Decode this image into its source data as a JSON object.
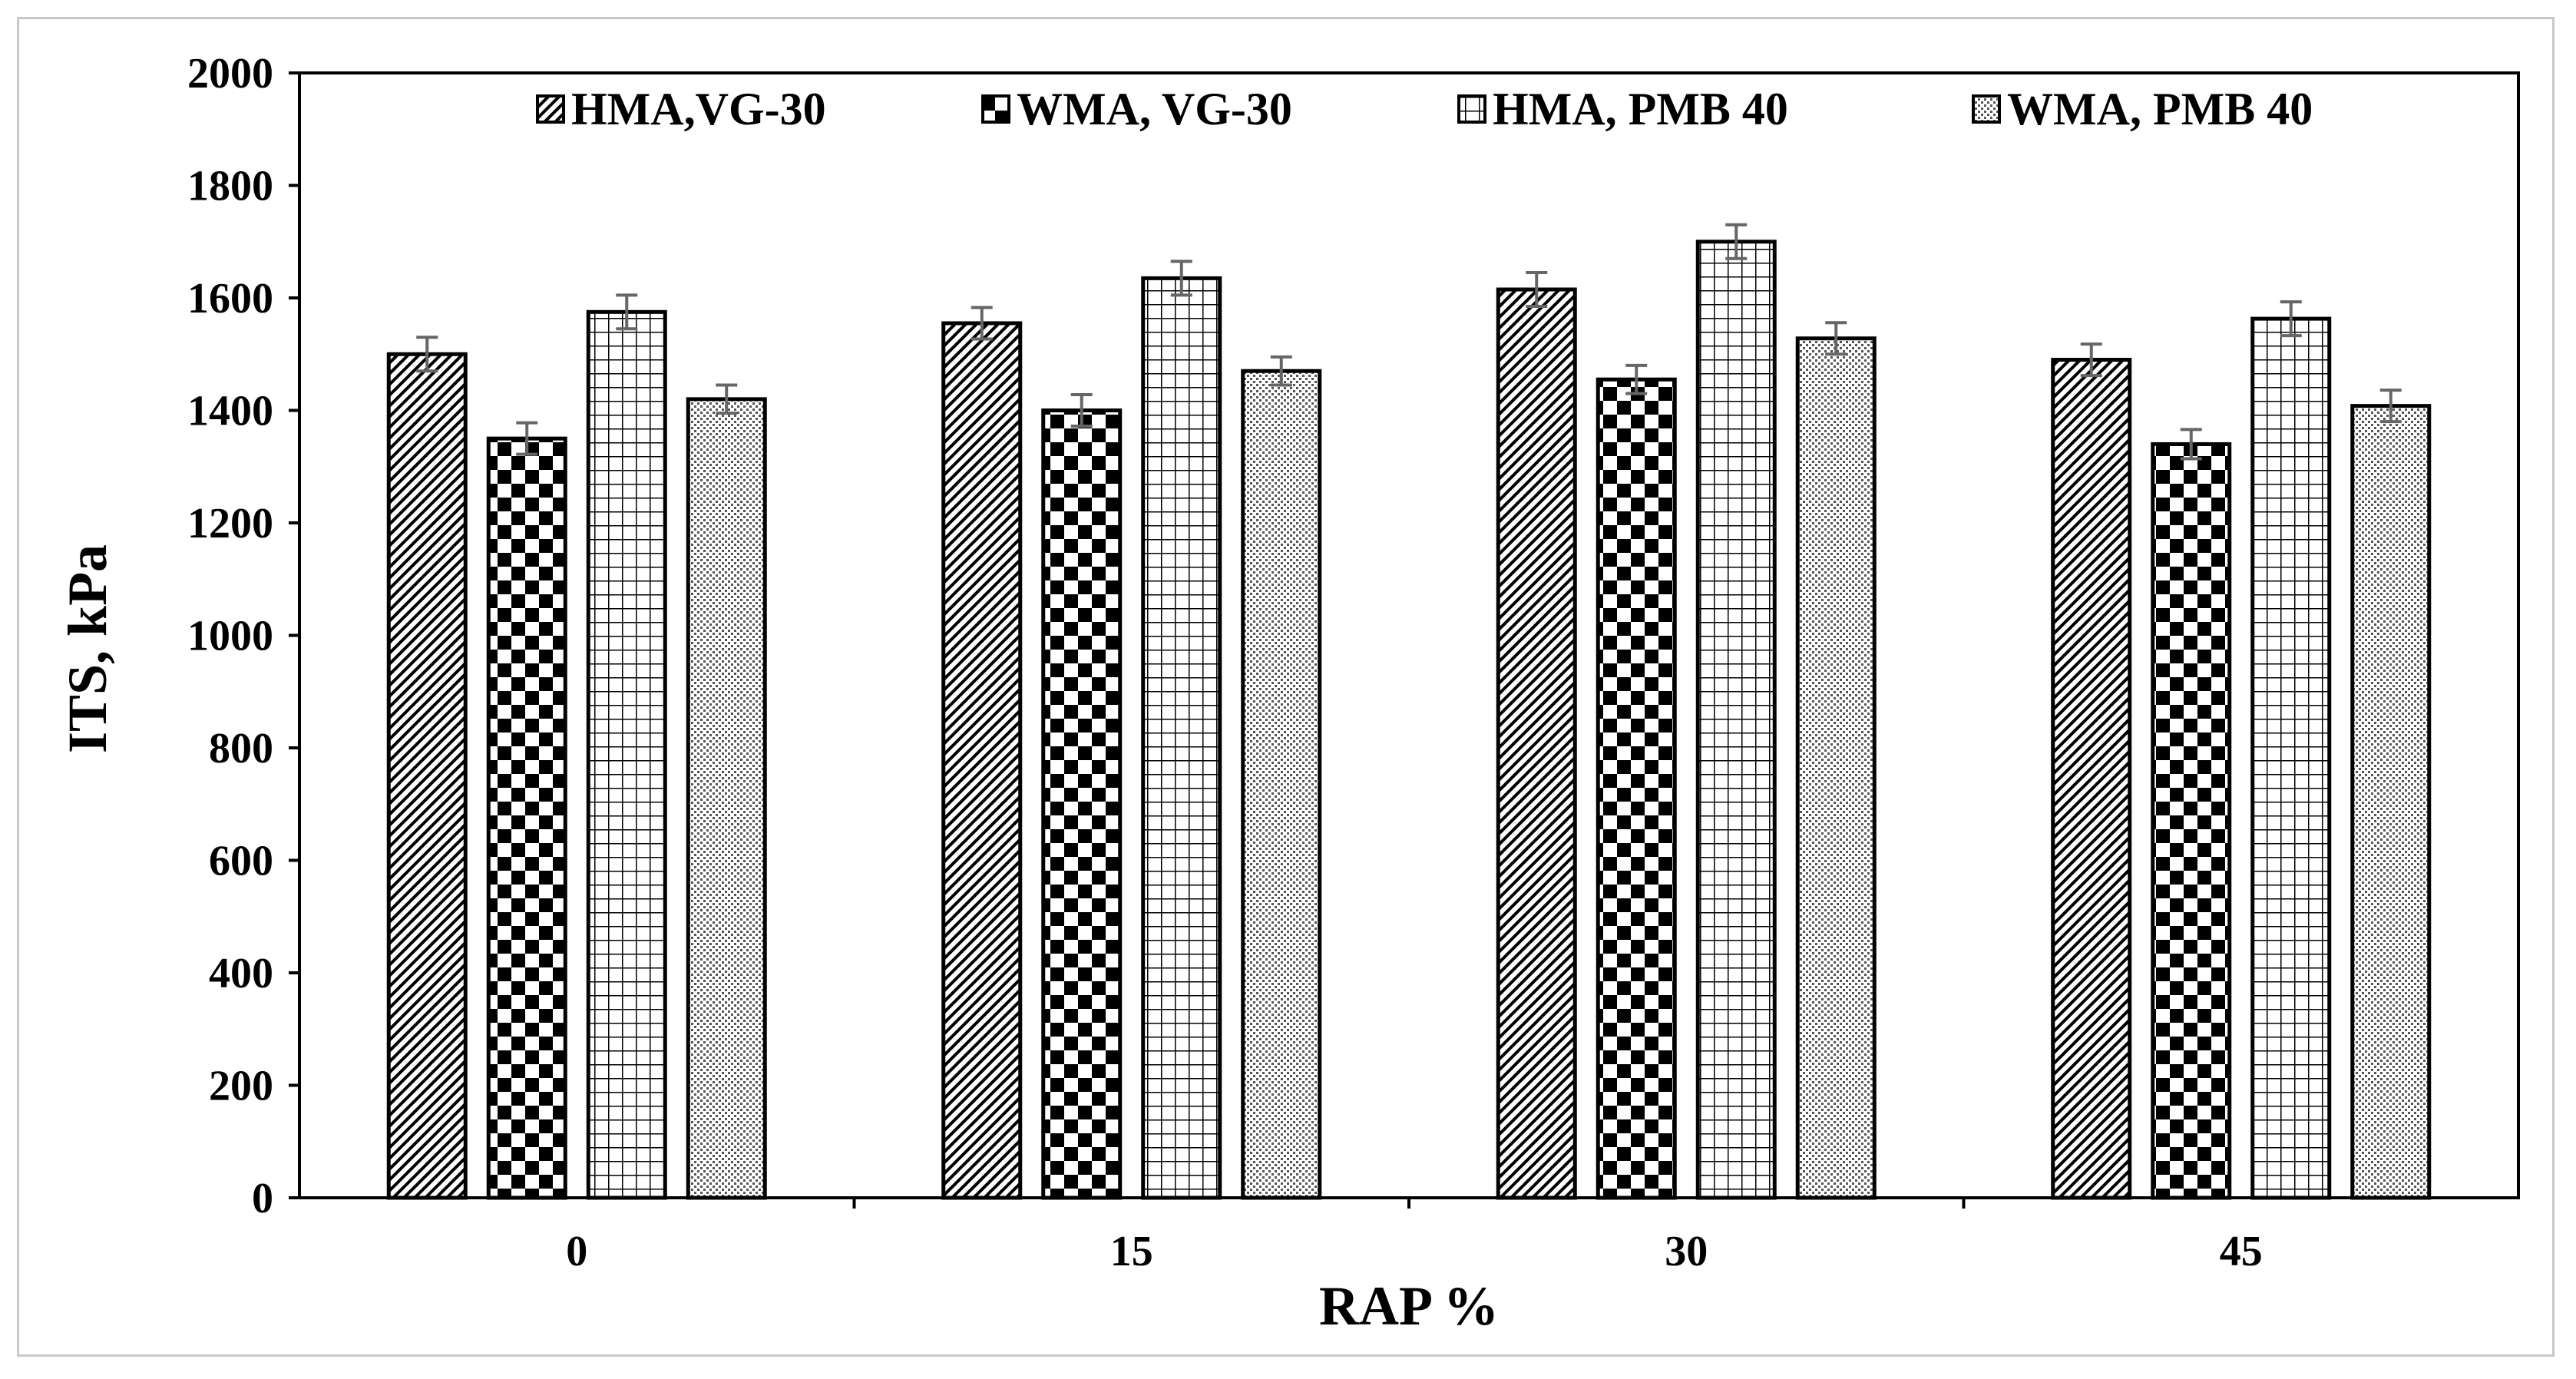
{
  "chart_data": {
    "type": "bar",
    "title": "",
    "xlabel": "RAP %",
    "ylabel": "ITS, kPa",
    "categories": [
      "0",
      "15",
      "30",
      "45"
    ],
    "ylim": [
      0,
      2000
    ],
    "yticks": [
      "0",
      "200",
      "400",
      "600",
      "800",
      "1000",
      "1200",
      "1400",
      "1600",
      "1800",
      "2000"
    ],
    "grid": false,
    "legend_position": "top",
    "series": [
      {
        "name": "HMA,VG-30",
        "pattern": "diagonal",
        "values": [
          1500,
          1555,
          1615,
          1490
        ],
        "errors": [
          30,
          28,
          30,
          28
        ]
      },
      {
        "name": "WMA, VG-30",
        "pattern": "checker",
        "values": [
          1350,
          1400,
          1455,
          1340
        ],
        "errors": [
          28,
          28,
          25,
          26
        ]
      },
      {
        "name": "HMA, PMB 40",
        "pattern": "grid",
        "values": [
          1575,
          1635,
          1700,
          1563
        ],
        "errors": [
          30,
          30,
          30,
          30
        ]
      },
      {
        "name": "WMA, PMB 40",
        "pattern": "dots",
        "values": [
          1420,
          1470,
          1528,
          1408
        ],
        "errors": [
          25,
          25,
          28,
          28
        ]
      }
    ]
  }
}
